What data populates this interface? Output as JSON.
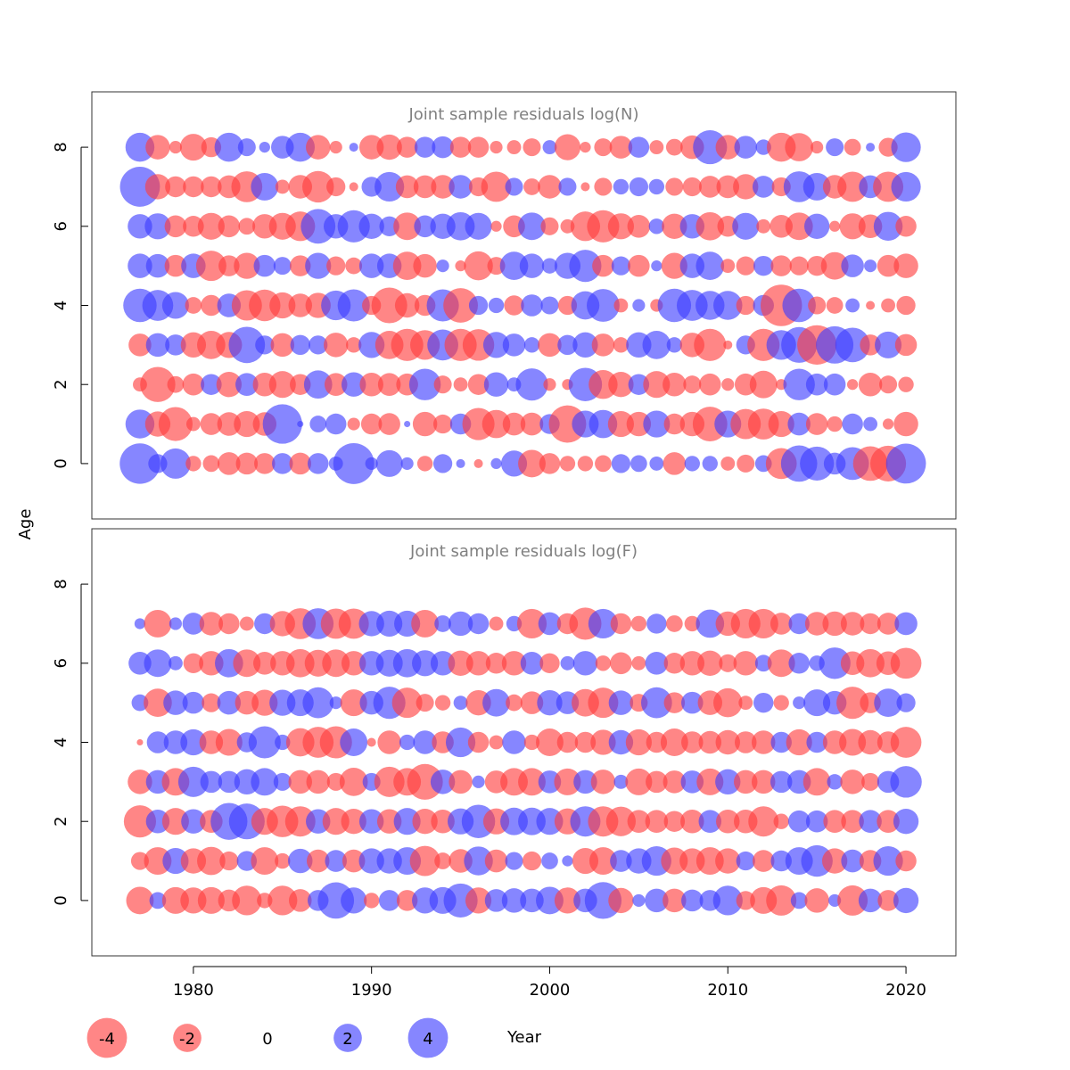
{
  "chart_data": {
    "type": "scatter",
    "variant": "bubble-residuals",
    "xlabel": "Year",
    "ylabel": "Age",
    "xlim": [
      1974.3,
      2022.8
    ],
    "ylim": [
      -1.4,
      9.4
    ],
    "x_ticks": [
      1980,
      1990,
      2000,
      2010,
      2020
    ],
    "y_ticks": [
      0,
      2,
      4,
      6,
      8
    ],
    "grid": false,
    "colors": {
      "negative": "#ff3b3b",
      "positive": "#3b3bff",
      "opacity": 0.62
    },
    "size_legend": {
      "position": "bottom-left",
      "values": [
        -4,
        -2,
        0,
        2,
        4
      ],
      "labels": [
        "-4",
        "-2",
        "0",
        "2",
        "4"
      ]
    },
    "panels": [
      {
        "title": "Joint sample residuals log(N)",
        "years": [
          1977,
          2020
        ],
        "ages": [
          0,
          8
        ],
        "residuals": [
          [
            4.1,
            0.9,
            2.3,
            -0.6,
            -0.7,
            -1.3,
            -1.2,
            -1.1,
            1.1,
            -1.2,
            1.1,
            0.5,
            4.2,
            0.4,
            1.8,
            0.4,
            -0.6,
            0.9,
            0.2,
            -0.2,
            0.3,
            1.7,
            -1.9,
            -1.1,
            -0.6,
            -0.6,
            -0.7,
            0.9,
            0.7,
            0.5,
            -1.3,
            0.6,
            0.6,
            -0.5,
            -0.8,
            0.7,
            -2.4,
            3.3,
            2.9,
            1.2,
            2.7,
            -3.0,
            -3.2,
            4.0
          ],
          [
            2.1,
            -1.6,
            -2.9,
            -0.5,
            -1.2,
            -1.4,
            -1.7,
            -1.4,
            3.9,
            0.1,
            0.7,
            1.1,
            -0.4,
            -1.1,
            -1.2,
            0.1,
            -1.5,
            -0.9,
            1.1,
            -2.6,
            -2.0,
            -1.3,
            -1.3,
            1.0,
            -3.5,
            1.8,
            2.0,
            -1.7,
            -1.5,
            1.8,
            -1.1,
            -1.5,
            -3.0,
            1.8,
            -2.3,
            -2.4,
            -1.7,
            1.3,
            -1.2,
            -0.6,
            1.1,
            0.5,
            -0.3,
            -1.5
          ],
          [
            -0.5,
            -3.1,
            -0.7,
            -1.2,
            1.1,
            -1.6,
            1.3,
            -1.4,
            -1.8,
            -1.1,
            2.0,
            -1.3,
            1.5,
            -1.4,
            -1.3,
            -1.2,
            2.5,
            -0.8,
            -0.5,
            -1.1,
            1.5,
            0.5,
            2.6,
            -0.4,
            -0.3,
            2.8,
            -2.1,
            -1.6,
            1.1,
            -1.8,
            -1.4,
            -0.8,
            -1.2,
            -0.4,
            -1.2,
            -1.9,
            -0.3,
            2.5,
            1.2,
            1.2,
            -0.3,
            -1.4,
            -0.8,
            -0.6
          ],
          [
            -1.3,
            1.4,
            1.1,
            -1.6,
            -2.0,
            -1.7,
            3.3,
            0.9,
            -1.4,
            1.0,
            0.9,
            -1.5,
            -0.6,
            1.7,
            -2.0,
            -2.6,
            -2.2,
            2.4,
            -2.6,
            -2.5,
            1.7,
            1.3,
            0.6,
            -1.4,
            1.0,
            1.6,
            -1.3,
            -0.6,
            1.6,
            2.0,
            0.6,
            -1.5,
            -2.6,
            -0.2,
            0.9,
            -2.6,
            2.2,
            3.2,
            -3.9,
            3.5,
            3.0,
            -1.1,
            1.8,
            -1.2
          ],
          [
            2.8,
            2.4,
            1.8,
            -0.7,
            -1.1,
            1.4,
            -2.3,
            -2.5,
            -1.7,
            -1.4,
            -1.6,
            2.2,
            2.6,
            -0.9,
            -3.2,
            -1.5,
            -1.1,
            2.6,
            -3.0,
            0.9,
            0.6,
            -1.0,
            1.2,
            0.8,
            -0.9,
            2.0,
            2.7,
            -0.5,
            0.4,
            -0.4,
            2.8,
            2.4,
            2.1,
            2.1,
            -0.9,
            1.1,
            -4.3,
            2.8,
            -0.8,
            -0.7,
            0.5,
            -0.2,
            -0.5,
            -0.9
          ],
          [
            1.5,
            1.4,
            -1.2,
            1.5,
            -2.3,
            -1.1,
            -1.7,
            1.2,
            0.8,
            -1.1,
            1.7,
            -0.9,
            -0.7,
            1.5,
            1.5,
            -2.0,
            -1.4,
            0.4,
            -0.3,
            -2.1,
            -0.8,
            2.0,
            1.5,
            0.6,
            1.7,
            2.6,
            -1.2,
            0.9,
            -1.2,
            0.3,
            -1.7,
            1.5,
            2.0,
            -0.5,
            -0.9,
            1.0,
            -1.1,
            -0.9,
            -1.0,
            -1.9,
            1.3,
            0.4,
            -1.2,
            -1.5
          ],
          [
            1.5,
            1.7,
            -1.2,
            -1.1,
            -1.8,
            -1.2,
            -0.7,
            -1.5,
            -1.8,
            -2.2,
            3.0,
            1.5,
            2.6,
            1.6,
            1.0,
            -1.9,
            1.2,
            1.6,
            2.0,
            1.8,
            -0.3,
            -1.2,
            1.9,
            -0.8,
            -0.5,
            -2.2,
            -2.6,
            -1.7,
            -1.3,
            0.6,
            -1.6,
            1.5,
            -2.0,
            -1.1,
            1.8,
            -0.5,
            -1.3,
            -1.9,
            1.6,
            -0.3,
            -1.7,
            -1.4,
            2.1,
            -1.1
          ],
          [
            4.0,
            -1.6,
            -1.1,
            -1.1,
            -1.1,
            -1.3,
            -2.4,
            1.9,
            -0.5,
            -1.4,
            -2.5,
            -0.9,
            -0.2,
            1.0,
            2.2,
            -1.3,
            -1.3,
            -1.4,
            1.4,
            -0.9,
            -2.3,
            0.8,
            -0.7,
            -1.4,
            0.8,
            -0.2,
            -0.8,
            0.6,
            0.9,
            0.6,
            -0.8,
            -0.9,
            -1.2,
            -1.3,
            -1.6,
            1.2,
            -0.9,
            2.4,
            1.9,
            -1.4,
            -2.3,
            1.3,
            -2.3,
            2.2
          ],
          [
            2.1,
            -1.5,
            -0.4,
            -1.8,
            -1.0,
            2.1,
            0.8,
            0.3,
            1.3,
            2.1,
            -1.5,
            -0.4,
            0.2,
            -1.5,
            -1.6,
            -1.1,
            1.1,
            1.2,
            -1.1,
            -1.1,
            -0.4,
            -0.5,
            -0.8,
            0.5,
            -1.7,
            -0.3,
            -0.8,
            -1.3,
            1.1,
            -0.5,
            -0.7,
            -1.4,
            2.9,
            -1.5,
            1.3,
            0.6,
            -2.1,
            -2.0,
            -0.4,
            0.8,
            -0.7,
            0.2,
            -0.9,
            2.2
          ]
        ]
      },
      {
        "title": "Joint sample residuals log(F)",
        "years": [
          1977,
          2020
        ],
        "ages": [
          0,
          7
        ],
        "residuals": [
          [
            -1.9,
            0.7,
            -1.8,
            -1.7,
            -1.8,
            -1.2,
            -2.2,
            -0.6,
            -2.2,
            -1.3,
            1.1,
            3.3,
            1.7,
            -0.6,
            1.1,
            -1.1,
            1.7,
            1.8,
            2.9,
            -1.7,
            1.3,
            1.5,
            1.4,
            1.9,
            -1.7,
            1.4,
            3.4,
            -1.6,
            0.4,
            1.4,
            -1.4,
            1.2,
            1.1,
            2.2,
            -0.9,
            -1.8,
            -2.3,
            0.7,
            -1.5,
            0.4,
            -2.3,
            1.4,
            -1.1,
            1.6
          ],
          [
            -0.8,
            -1.9,
            1.7,
            -1.6,
            -2.0,
            -0.9,
            1.0,
            -1.9,
            -0.6,
            1.5,
            -1.3,
            1.2,
            -1.3,
            1.6,
            1.6,
            1.9,
            -2.3,
            -0.7,
            -1.4,
            2.1,
            -1.3,
            0.8,
            -0.9,
            0.7,
            0.3,
            -1.7,
            -1.9,
            1.2,
            1.6,
            2.2,
            -1.8,
            -1.6,
            -1.9,
            -1.6,
            0.9,
            -1.2,
            1.1,
            1.9,
            2.5,
            -1.6,
            1.3,
            -1.2,
            2.2,
            -1.1
          ],
          [
            -2.6,
            1.4,
            -1.8,
            1.5,
            -1.3,
            3.4,
            3.2,
            -1.8,
            -2.5,
            -2.3,
            1.5,
            -1.8,
            -1.6,
            1.5,
            -1.5,
            1.8,
            -1.6,
            -1.4,
            1.7,
            2.8,
            -1.7,
            1.9,
            1.9,
            1.8,
            -1.7,
            2.3,
            -2.3,
            -2.2,
            -1.3,
            -1.3,
            -1.1,
            -1.4,
            1.3,
            -1.4,
            -1.4,
            -2.3,
            -0.6,
            1.2,
            1.2,
            -1.3,
            -1.3,
            1.3,
            -1.3,
            1.6
          ],
          [
            -1.5,
            1.4,
            -1.9,
            2.3,
            1.2,
            1.2,
            1.6,
            1.9,
            0.8,
            -1.4,
            -1.4,
            -0.8,
            -2.0,
            0.8,
            -2.3,
            -1.9,
            -3.2,
            1.5,
            -1.4,
            0.4,
            -1.3,
            -1.9,
            -1.9,
            1.3,
            -1.8,
            1.4,
            -1.5,
            0.5,
            -1.8,
            -1.2,
            -1.3,
            1.3,
            -1.8,
            1.6,
            -1.4,
            -1.4,
            1.2,
            1.4,
            -1.9,
            0.6,
            -1.5,
            -0.8,
            1.2,
            2.5
          ],
          [
            -0.1,
            1.2,
            1.4,
            1.7,
            -1.4,
            -1.8,
            1.0,
            2.6,
            0.6,
            -2.0,
            -2.4,
            -2.6,
            1.9,
            -0.2,
            -1.4,
            0.6,
            1.4,
            -1.2,
            2.2,
            -1.1,
            -0.5,
            1.4,
            -0.6,
            -1.9,
            -1.1,
            -1.1,
            -1.6,
            1.5,
            -1.7,
            -1.1,
            -1.9,
            -1.2,
            -1.3,
            -1.5,
            -1.2,
            -1.4,
            1.1,
            -1.7,
            1.1,
            -1.4,
            -1.8,
            -1.5,
            -1.2,
            -2.4
          ],
          [
            0.7,
            -2.0,
            1.5,
            1.2,
            -0.9,
            1.4,
            -1.4,
            -1.7,
            1.7,
            1.8,
            2.4,
            0.4,
            -1.8,
            1.4,
            2.6,
            -2.3,
            -0.8,
            -0.6,
            0.5,
            -1.6,
            1.9,
            -0.7,
            -1.3,
            1.6,
            1.3,
            -1.9,
            -2.3,
            1.5,
            -0.8,
            2.4,
            -1.1,
            1.2,
            -1.5,
            -2.1,
            -0.5,
            1.0,
            -0.6,
            0.4,
            1.8,
            1.4,
            -2.6,
            -1.1,
            2.0,
            0.9
          ],
          [
            1.3,
            1.9,
            0.5,
            -1.0,
            -1.5,
            2.0,
            -1.9,
            -1.3,
            -1.5,
            -2.0,
            -1.8,
            -1.9,
            -1.5,
            1.5,
            1.8,
            2.0,
            1.7,
            1.5,
            -1.6,
            -1.5,
            -1.1,
            -1.5,
            1.3,
            -1.0,
            0.5,
            1.5,
            -0.6,
            -1.2,
            -0.5,
            1.3,
            -1.1,
            -1.5,
            -1.6,
            -0.8,
            -1.5,
            0.7,
            -1.9,
            1.1,
            0.6,
            2.5,
            -1.4,
            -2.0,
            -1.4,
            -2.4
          ],
          [
            0.3,
            -1.9,
            0.4,
            1.2,
            -1.4,
            -1.1,
            -0.5,
            1.1,
            -1.6,
            -2.4,
            2.4,
            -2.3,
            -2.3,
            1.6,
            1.7,
            1.7,
            -1.9,
            0.7,
            1.5,
            1.1,
            -0.5,
            0.6,
            -2.2,
            1.3,
            -1.1,
            -2.6,
            2.2,
            -1.1,
            -0.6,
            1.0,
            -0.7,
            -0.6,
            2.0,
            -1.5,
            -2.2,
            -2.2,
            -1.2,
            1.1,
            -1.4,
            -1.5,
            -1.4,
            -1.1,
            -1.2,
            1.3
          ]
        ]
      }
    ]
  }
}
